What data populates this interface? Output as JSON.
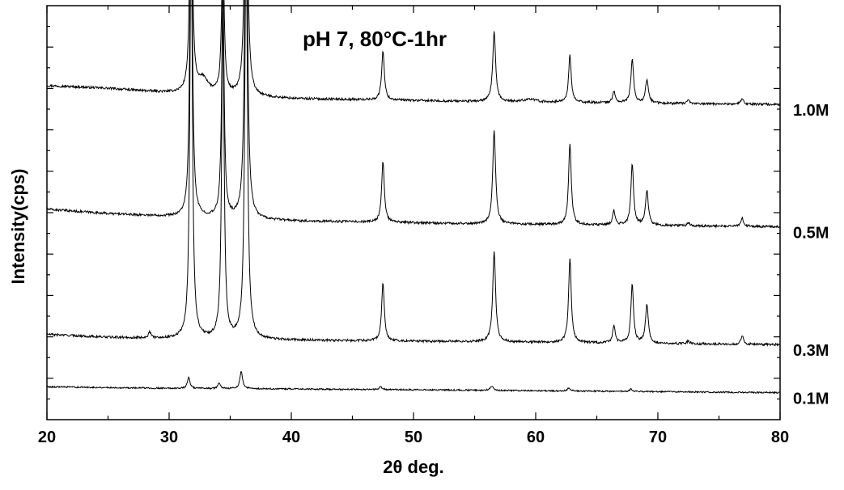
{
  "chart_data": {
    "type": "line",
    "title": "pH 7, 80°C-1hr",
    "xlabel": "2θ deg.",
    "ylabel": "Intensity(cps)",
    "xlim": [
      20,
      80
    ],
    "x_ticks": [
      "20",
      "30",
      "40",
      "50",
      "60",
      "70",
      "80"
    ],
    "baseline": {
      "x": [
        20,
        80
      ],
      "y": [
        0,
        0
      ]
    },
    "series": [
      {
        "name": "1.0M",
        "offset": 1.0,
        "background": [
          [
            20,
            0.045
          ],
          [
            25,
            0.035
          ],
          [
            30,
            0.02
          ],
          [
            40,
            0.0
          ],
          [
            55,
            -0.01
          ],
          [
            80,
            -0.02
          ]
        ],
        "peaks": [
          [
            31.8,
            0.92,
            0.12
          ],
          [
            32.8,
            0.05,
            0.5
          ],
          [
            34.4,
            0.52,
            0.12
          ],
          [
            36.3,
            1.14,
            0.13
          ],
          [
            47.5,
            0.17,
            0.13
          ],
          [
            56.6,
            0.24,
            0.14
          ],
          [
            59.5,
            0.01,
            0.6
          ],
          [
            62.8,
            0.16,
            0.13
          ],
          [
            66.4,
            0.04,
            0.12
          ],
          [
            67.9,
            0.15,
            0.13
          ],
          [
            69.1,
            0.08,
            0.14
          ],
          [
            72.5,
            0.01,
            0.12
          ],
          [
            76.9,
            0.02,
            0.12
          ]
        ]
      },
      {
        "name": "0.5M",
        "offset": 0.58,
        "background": [
          [
            20,
            0.04
          ],
          [
            25,
            0.025
          ],
          [
            30,
            0.015
          ],
          [
            40,
            0.0
          ],
          [
            55,
            -0.01
          ],
          [
            80,
            -0.02
          ]
        ],
        "peaks": [
          [
            31.8,
            1.2,
            0.12
          ],
          [
            34.4,
            0.78,
            0.12
          ],
          [
            36.3,
            1.35,
            0.13
          ],
          [
            47.5,
            0.21,
            0.13
          ],
          [
            56.6,
            0.32,
            0.14
          ],
          [
            62.8,
            0.28,
            0.13
          ],
          [
            66.4,
            0.05,
            0.12
          ],
          [
            67.9,
            0.21,
            0.13
          ],
          [
            69.1,
            0.12,
            0.14
          ],
          [
            72.5,
            0.01,
            0.12
          ],
          [
            76.9,
            0.03,
            0.12
          ]
        ]
      },
      {
        "name": "0.3M",
        "offset": 0.18,
        "background": [
          [
            20,
            0.01
          ],
          [
            25,
            0.0
          ],
          [
            30,
            -0.005
          ],
          [
            40,
            -0.01
          ],
          [
            55,
            -0.015
          ],
          [
            80,
            -0.025
          ]
        ],
        "peaks": [
          [
            28.4,
            0.02,
            0.12
          ],
          [
            31.8,
            1.47,
            0.12
          ],
          [
            34.4,
            1.12,
            0.12
          ],
          [
            36.3,
            1.42,
            0.13
          ],
          [
            47.5,
            0.2,
            0.13
          ],
          [
            56.6,
            0.31,
            0.14
          ],
          [
            62.8,
            0.29,
            0.13
          ],
          [
            66.4,
            0.06,
            0.12
          ],
          [
            67.9,
            0.2,
            0.13
          ],
          [
            69.1,
            0.13,
            0.14
          ],
          [
            72.5,
            0.01,
            0.12
          ],
          [
            76.9,
            0.03,
            0.12
          ]
        ]
      },
      {
        "name": "0.1M",
        "offset": 0.0,
        "background": [
          [
            20,
            0.01
          ],
          [
            30,
            0.005
          ],
          [
            50,
            0.0
          ],
          [
            80,
            -0.01
          ]
        ],
        "peaks": [
          [
            31.6,
            0.04,
            0.12
          ],
          [
            34.1,
            0.02,
            0.12
          ],
          [
            35.9,
            0.06,
            0.13
          ],
          [
            47.3,
            0.01,
            0.13
          ],
          [
            56.4,
            0.015,
            0.14
          ],
          [
            62.7,
            0.01,
            0.13
          ],
          [
            67.8,
            0.008,
            0.13
          ]
        ]
      }
    ],
    "legend": "none",
    "grid": false,
    "colors": {
      "line": "#000000",
      "background": "#ffffff"
    }
  }
}
